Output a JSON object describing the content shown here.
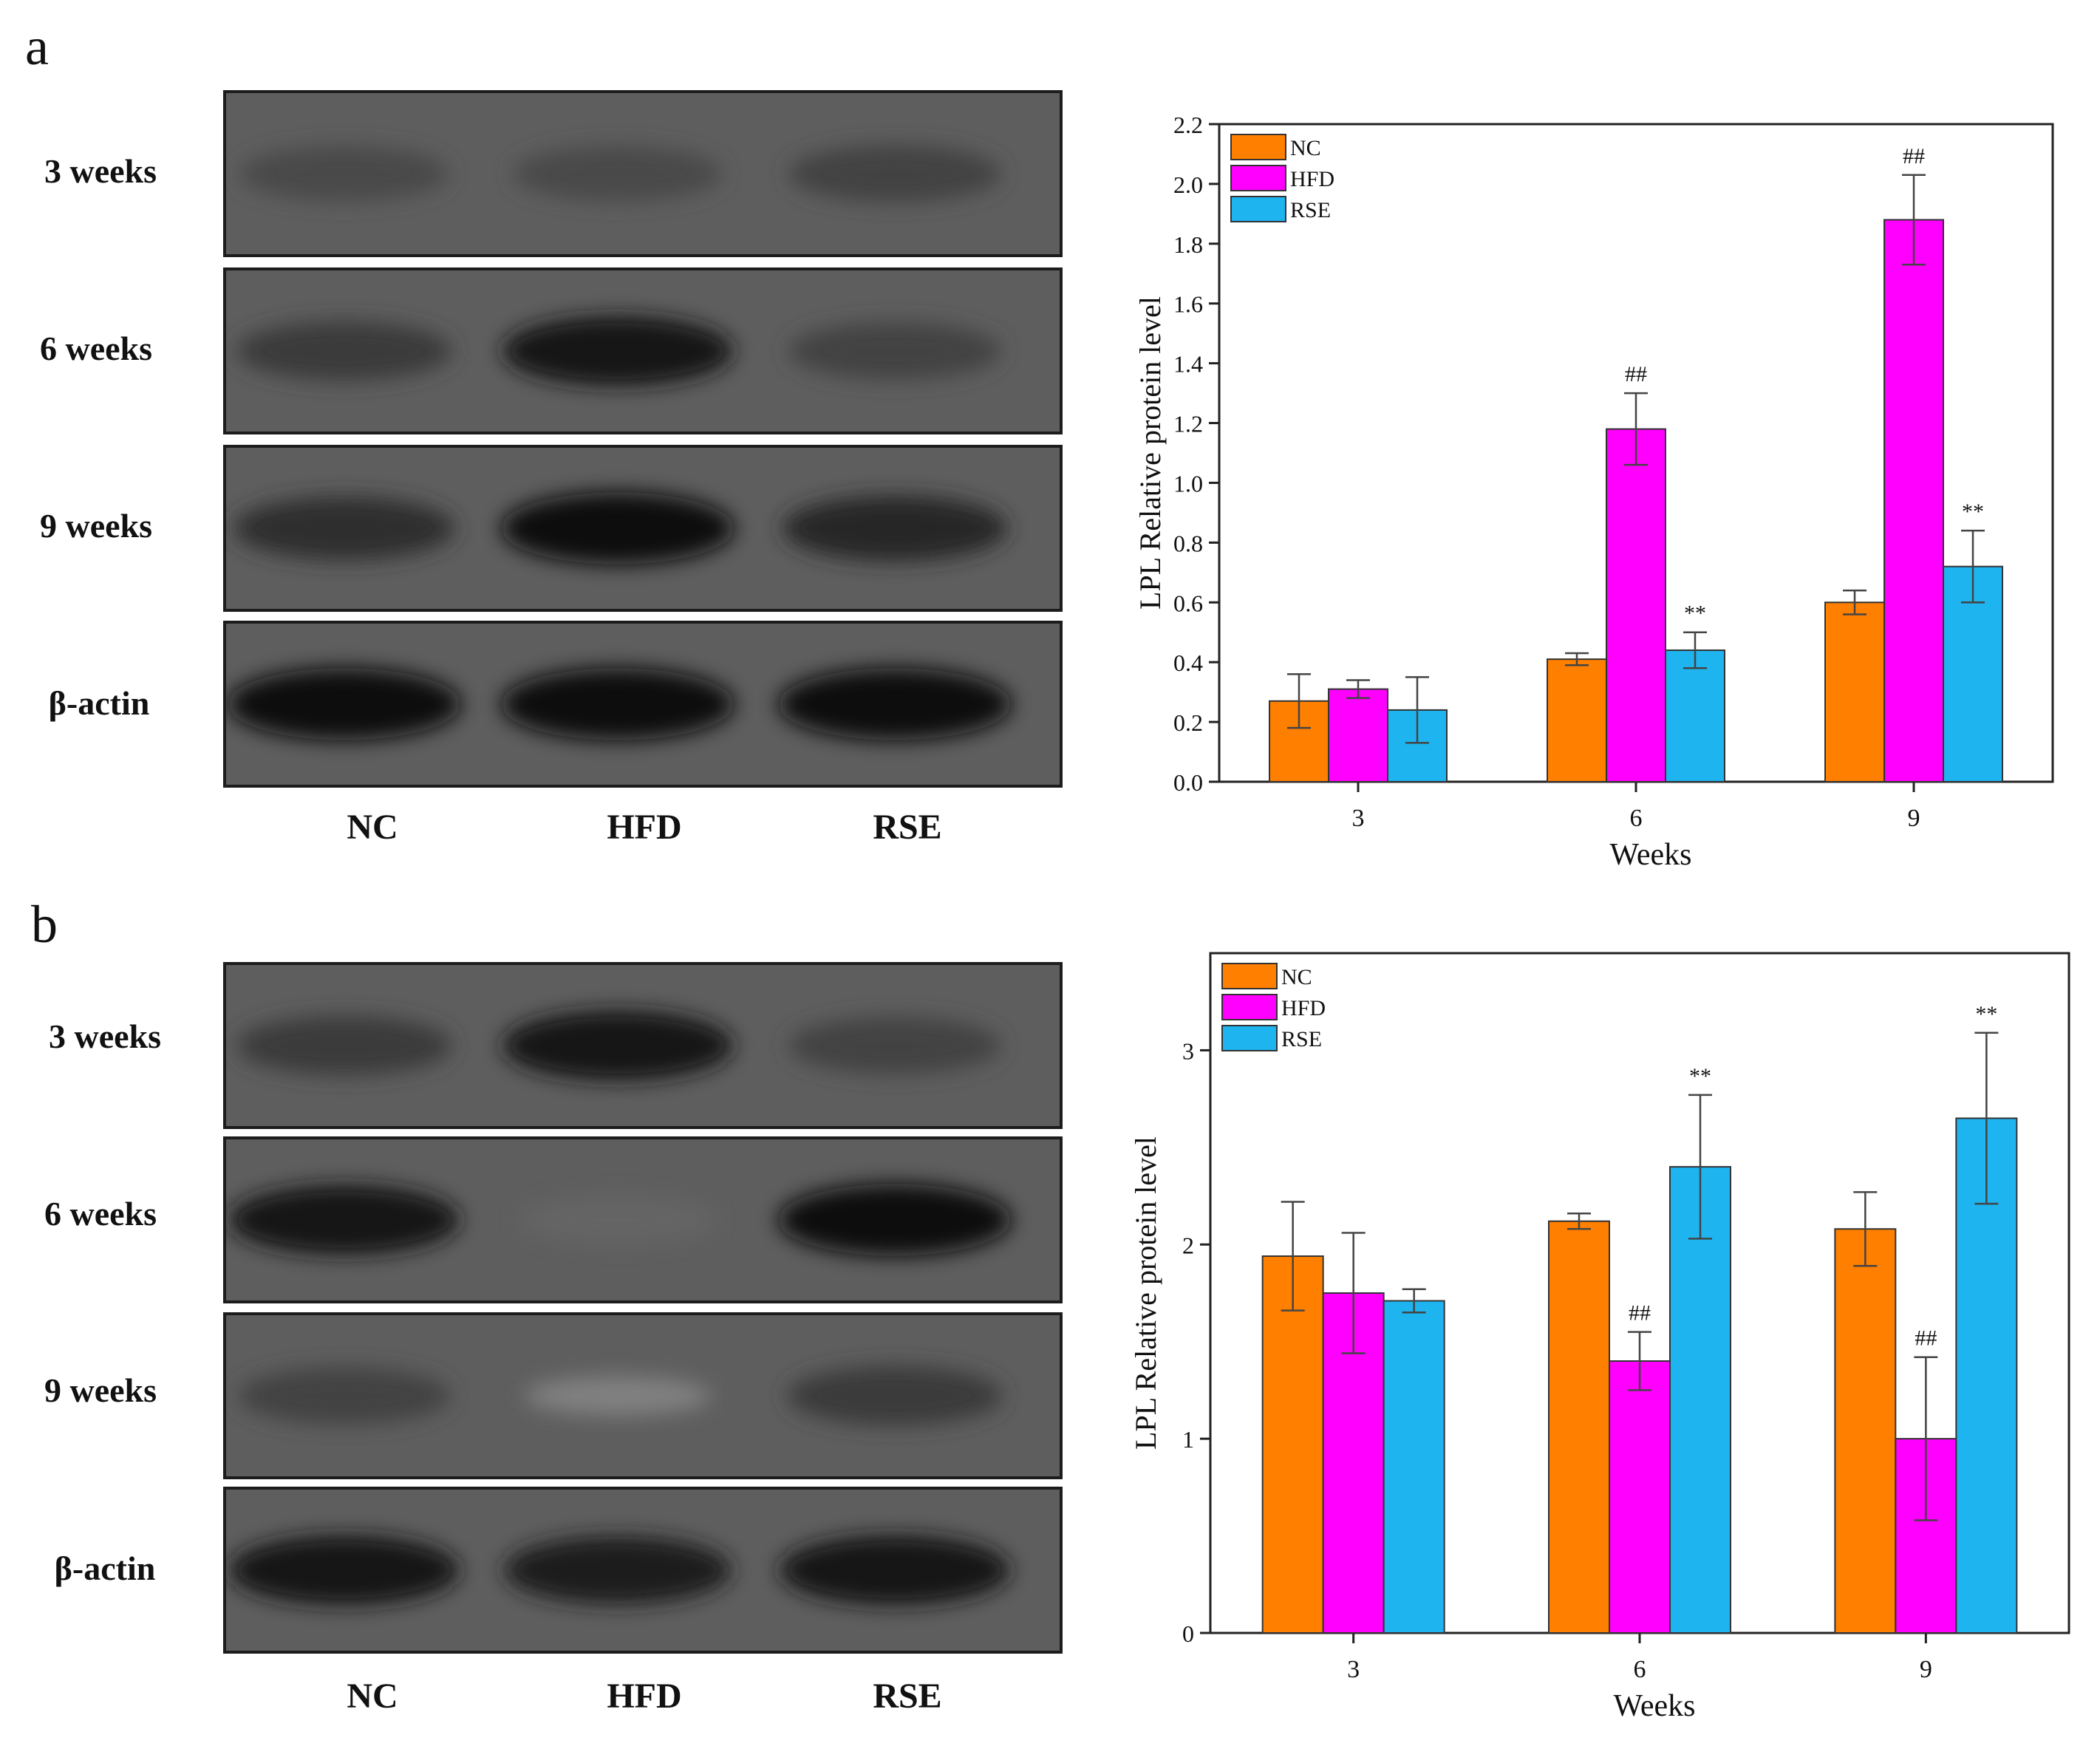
{
  "panels": {
    "a": {
      "letter": "a",
      "blot_rows": [
        {
          "label": "3 weeks",
          "intensity": [
            0.55,
            0.55,
            0.6
          ]
        },
        {
          "label": "6 weeks",
          "intensity": [
            0.65,
            0.9,
            0.6
          ]
        },
        {
          "label": "9 weeks",
          "intensity": [
            0.75,
            0.95,
            0.8
          ]
        },
        {
          "label": "β-actin",
          "intensity": [
            0.95,
            0.95,
            0.95
          ]
        }
      ],
      "lanes": [
        "NC",
        "HFD",
        "RSE"
      ]
    },
    "b": {
      "letter": "b",
      "blot_rows": [
        {
          "label": "3 weeks",
          "intensity": [
            0.65,
            0.9,
            0.6
          ]
        },
        {
          "label": "6 weeks",
          "intensity": [
            0.9,
            0.35,
            0.95
          ]
        },
        {
          "label": "9 weeks",
          "intensity": [
            0.6,
            0.15,
            0.65
          ]
        },
        {
          "label": "β-actin",
          "intensity": [
            0.9,
            0.85,
            0.9
          ]
        }
      ],
      "lanes": [
        "NC",
        "HFD",
        "RSE"
      ]
    }
  },
  "chart_data": [
    {
      "type": "bar",
      "panel": "a",
      "categories": [
        "3",
        "6",
        "9"
      ],
      "xlabel": "Weeks",
      "ylabel": "LPL Relative protein level",
      "ylim": [
        0,
        2.2
      ],
      "yticks": [
        0.0,
        0.2,
        0.4,
        0.6,
        0.8,
        1.0,
        1.2,
        1.4,
        1.6,
        1.8,
        2.0,
        2.2
      ],
      "ytick_labels": [
        "0.0",
        "0.2",
        "0.4",
        "0.6",
        "0.8",
        "1.0",
        "1.2",
        "1.4",
        "1.6",
        "1.8",
        "2.0",
        "2.2"
      ],
      "legend_position": "top-left",
      "series": [
        {
          "name": "NC",
          "color": "#FF7F00",
          "values": [
            0.27,
            0.41,
            0.6
          ],
          "errors": [
            0.09,
            0.02,
            0.04
          ],
          "annotations": [
            "",
            "",
            ""
          ]
        },
        {
          "name": "HFD",
          "color": "#FF00FF",
          "values": [
            0.31,
            1.18,
            1.88
          ],
          "errors": [
            0.03,
            0.12,
            0.15
          ],
          "annotations": [
            "",
            "##",
            "##"
          ]
        },
        {
          "name": "RSE",
          "color": "#1EB4F0",
          "values": [
            0.24,
            0.44,
            0.72
          ],
          "errors": [
            0.11,
            0.06,
            0.12
          ],
          "annotations": [
            "",
            "**",
            "**"
          ]
        }
      ]
    },
    {
      "type": "bar",
      "panel": "b",
      "categories": [
        "3",
        "6",
        "9"
      ],
      "xlabel": "Weeks",
      "ylabel": "LPL Relative protein level",
      "ylim": [
        0,
        3.5
      ],
      "yticks": [
        0,
        1,
        2,
        3
      ],
      "ytick_labels": [
        "0",
        "1",
        "2",
        "3"
      ],
      "legend_position": "top-left",
      "series": [
        {
          "name": "NC",
          "color": "#FF7F00",
          "values": [
            1.94,
            2.12,
            2.08
          ],
          "errors": [
            0.28,
            0.04,
            0.19
          ],
          "annotations": [
            "",
            "",
            ""
          ]
        },
        {
          "name": "HFD",
          "color": "#FF00FF",
          "values": [
            1.75,
            1.4,
            1.0
          ],
          "errors": [
            0.31,
            0.15,
            0.42
          ],
          "annotations": [
            "",
            "##",
            "##"
          ]
        },
        {
          "name": "RSE",
          "color": "#1EB4F0",
          "values": [
            1.71,
            2.4,
            2.65
          ],
          "errors": [
            0.06,
            0.37,
            0.44
          ],
          "annotations": [
            "",
            "**",
            "**"
          ]
        }
      ]
    }
  ]
}
